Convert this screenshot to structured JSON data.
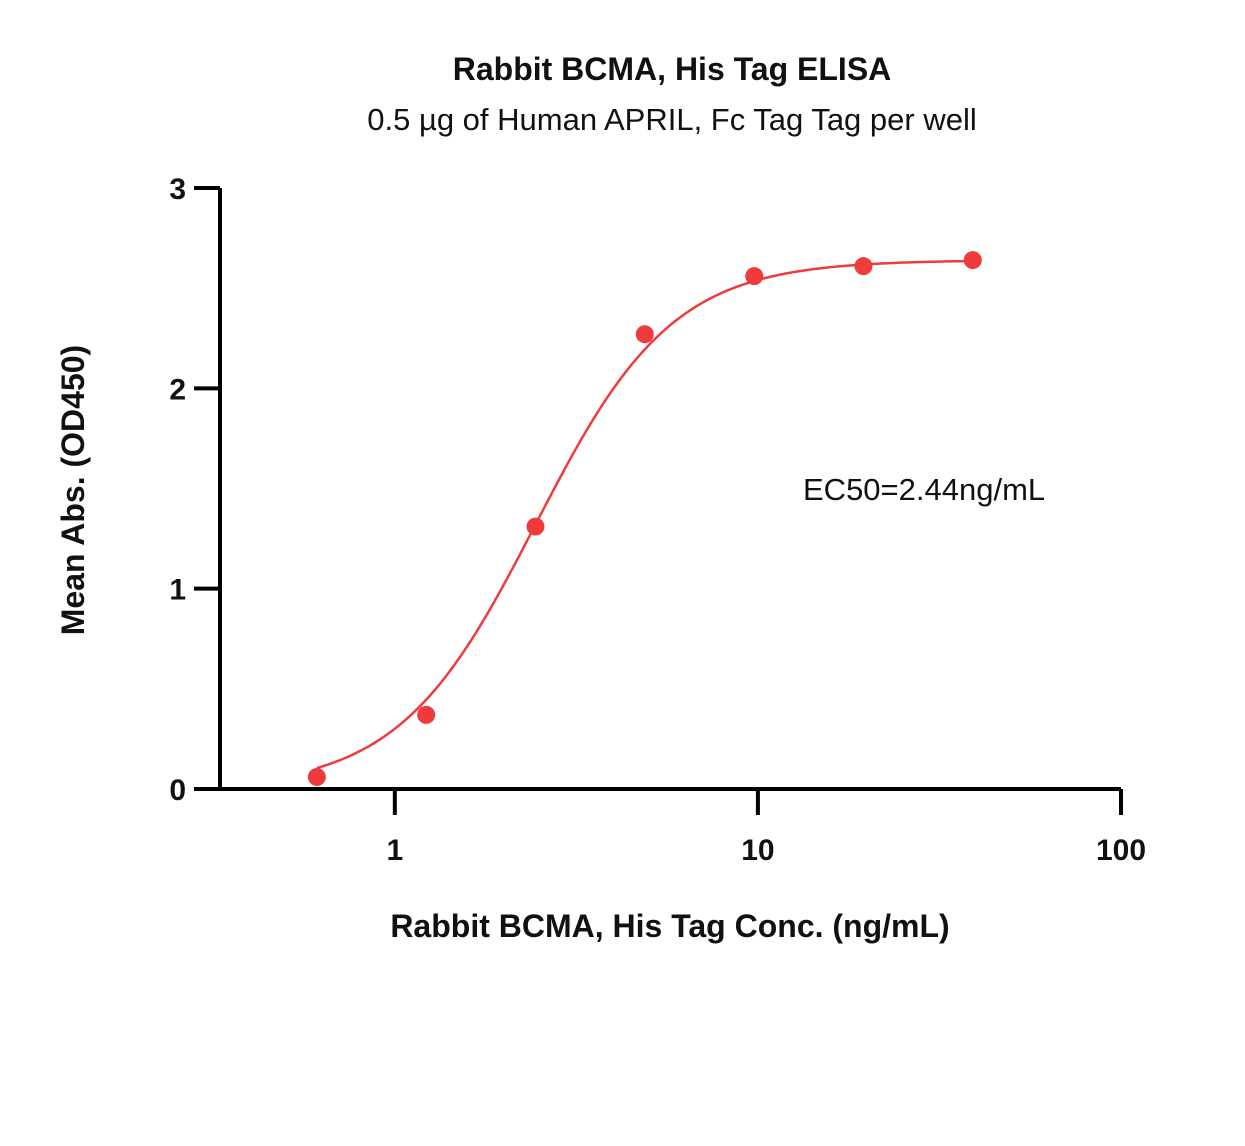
{
  "chart_data": {
    "type": "scatter",
    "title": "Rabbit BCMA, His Tag ELISA",
    "subtitle": "0.5 µg of Human APRIL, Fc Tag Tag per well",
    "xlabel": "Rabbit BCMA, His Tag Conc. (ng/mL)",
    "ylabel": "Mean Abs. (OD450)",
    "x_scale": "log",
    "xlim": [
      0.33,
      100
    ],
    "ylim": [
      0,
      3
    ],
    "x_ticks": [
      {
        "value": 1,
        "label": "1"
      },
      {
        "value": 10,
        "label": "10"
      },
      {
        "value": 100,
        "label": "100"
      }
    ],
    "y_ticks": [
      {
        "value": 0,
        "label": "0"
      },
      {
        "value": 1,
        "label": "1"
      },
      {
        "value": 2,
        "label": "2"
      },
      {
        "value": 3,
        "label": "3"
      }
    ],
    "series": [
      {
        "x": [
          0.61,
          1.22,
          2.44,
          4.88,
          9.77,
          19.53,
          39.06
        ],
        "y": [
          0.06,
          0.37,
          1.31,
          2.27,
          2.56,
          2.61,
          2.64
        ],
        "color": "#ef3b3b",
        "fit": "4PL"
      }
    ],
    "fit_curve": {
      "bottom": 0.0,
      "top": 2.64,
      "ec50": 2.44,
      "hill": 2.3
    },
    "annotation": "EC50=2.44ng/mL",
    "grid": false,
    "legend": false
  }
}
